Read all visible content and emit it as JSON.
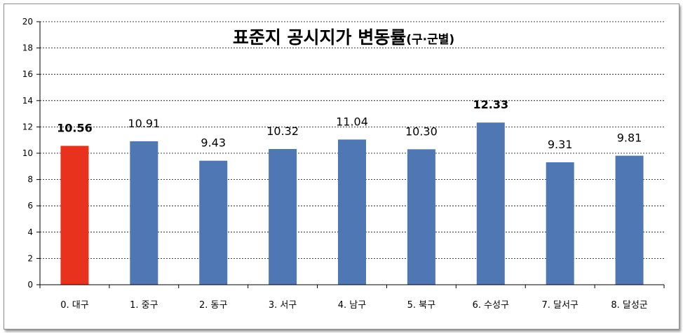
{
  "chart_data": {
    "type": "bar",
    "title": "표준지 공시지가 변동률",
    "title_suffix": "(구·군별)",
    "ylim": [
      0,
      20
    ],
    "yticks": [
      0,
      2,
      4,
      6,
      8,
      10,
      12,
      14,
      16,
      18,
      20
    ],
    "grid": "horizontal-dashed",
    "categories": [
      "0. 대구",
      "1. 중구",
      "2. 동구",
      "3. 서구",
      "4. 남구",
      "5. 북구",
      "6. 수성구",
      "7. 달서구",
      "8. 달성군"
    ],
    "values": [
      10.56,
      10.91,
      9.43,
      10.32,
      11.04,
      10.3,
      12.33,
      9.31,
      9.81
    ],
    "labels": [
      "10.56",
      "10.91",
      "9.43",
      "10.32",
      "11.04",
      "10.30",
      "12.33",
      "9.31",
      "9.81"
    ],
    "bold_labels": [
      0,
      6
    ],
    "bar_colors": [
      "#e8321e",
      "#4f77b3",
      "#4f77b3",
      "#4f77b3",
      "#4f77b3",
      "#4f77b3",
      "#4f77b3",
      "#4f77b3",
      "#4f77b3"
    ]
  }
}
